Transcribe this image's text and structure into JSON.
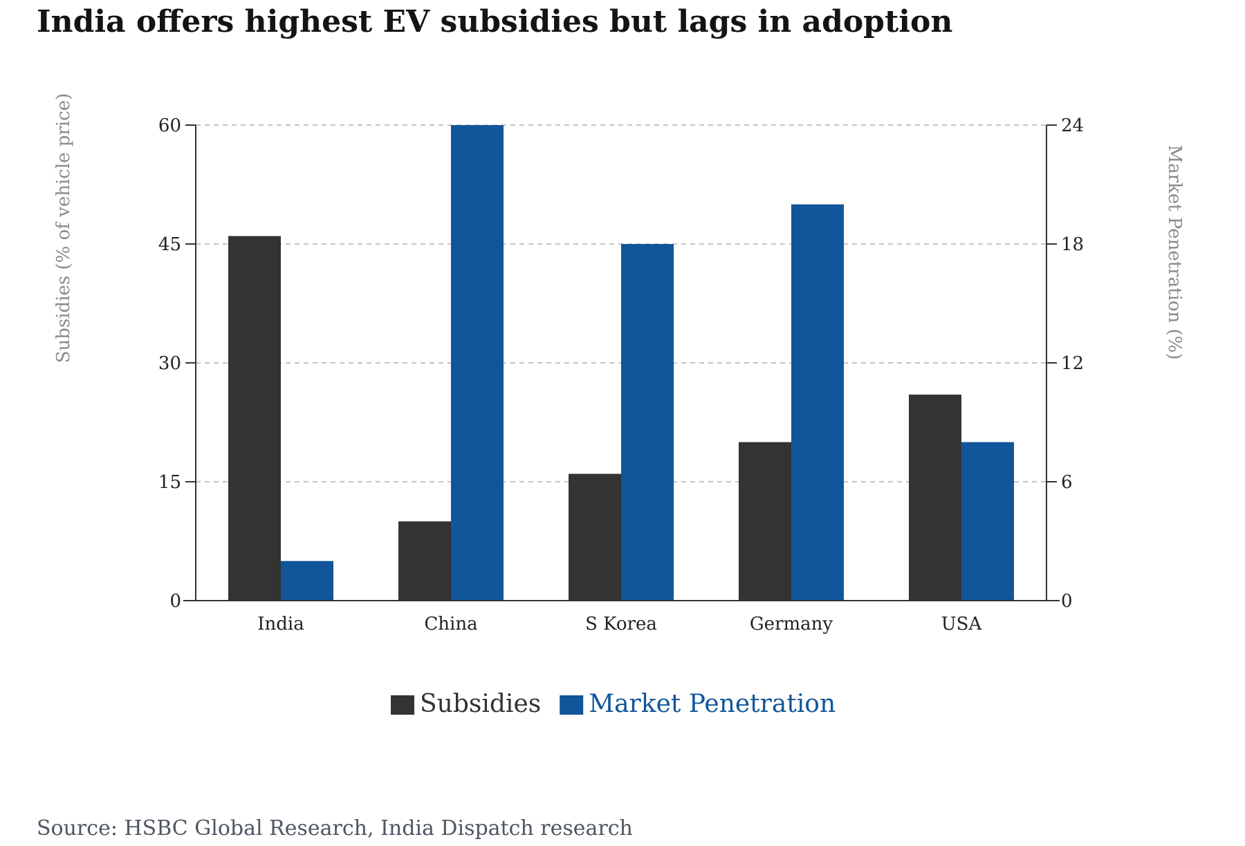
{
  "chart_data": {
    "type": "bar",
    "title": "India offers highest EV subsidies but lags in adoption",
    "categories": [
      "India",
      "China",
      "S Korea",
      "Germany",
      "USA"
    ],
    "series": [
      {
        "name": "Subsidies",
        "axis": "left",
        "color": "#333333",
        "values": [
          46,
          10,
          16,
          20,
          26
        ]
      },
      {
        "name": "Market Penetration",
        "axis": "right",
        "color": "#11559a",
        "values": [
          2,
          24,
          18,
          20,
          8
        ]
      }
    ],
    "ylabel": "Subsidies (% of vehicle price)",
    "ylim": [
      0,
      60
    ],
    "yticks": [
      "0",
      "15",
      "30",
      "45",
      "60"
    ],
    "y2label": "Market Penetration (%)",
    "y2lim": [
      0,
      24
    ],
    "y2ticks": [
      "0",
      "6",
      "12",
      "18",
      "24"
    ],
    "grid": "horizontal dashed",
    "legend_position": "bottom-center",
    "legend_text_colors": [
      "#333333",
      "#11559a"
    ]
  },
  "source": "Source: HSBC Global Research, India Dispatch research"
}
